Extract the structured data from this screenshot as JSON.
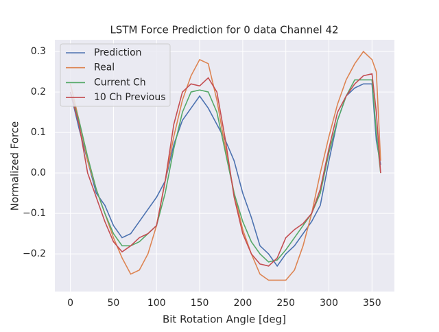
{
  "chart_data": {
    "type": "line",
    "title": "LSTM Force Prediction for 0 data Channel 42",
    "x_label": "Bit Rotation Angle [deg]",
    "y_label": "Normalized Force",
    "x": [
      0,
      10,
      20,
      30,
      40,
      50,
      60,
      70,
      80,
      90,
      100,
      110,
      120,
      130,
      140,
      150,
      160,
      170,
      180,
      190,
      200,
      210,
      220,
      230,
      240,
      250,
      260,
      270,
      280,
      290,
      300,
      310,
      320,
      330,
      340,
      350,
      355,
      360
    ],
    "series": [
      {
        "name": "Prediction",
        "color": "#4c72b0",
        "values": [
          0.2,
          0.11,
          0.03,
          -0.05,
          -0.08,
          -0.13,
          -0.16,
          -0.15,
          -0.12,
          -0.09,
          -0.06,
          -0.02,
          0.07,
          0.13,
          0.16,
          0.19,
          0.16,
          0.12,
          0.08,
          0.03,
          -0.05,
          -0.11,
          -0.18,
          -0.2,
          -0.23,
          -0.2,
          -0.18,
          -0.15,
          -0.12,
          -0.08,
          0.03,
          0.13,
          0.19,
          0.21,
          0.22,
          0.22,
          0.08,
          0.02
        ]
      },
      {
        "name": "Real",
        "color": "#dd8452",
        "values": [
          0.22,
          0.13,
          0.03,
          -0.04,
          -0.1,
          -0.16,
          -0.21,
          -0.25,
          -0.24,
          -0.2,
          -0.13,
          -0.02,
          0.09,
          0.18,
          0.24,
          0.28,
          0.27,
          0.18,
          0.06,
          -0.05,
          -0.14,
          -0.2,
          -0.25,
          -0.265,
          -0.265,
          -0.265,
          -0.24,
          -0.18,
          -0.1,
          0.0,
          0.09,
          0.17,
          0.23,
          0.27,
          0.3,
          0.28,
          0.25,
          0.03
        ]
      },
      {
        "name": "Current Ch",
        "color": "#55a868",
        "values": [
          0.2,
          0.13,
          0.04,
          -0.04,
          -0.1,
          -0.15,
          -0.18,
          -0.18,
          -0.17,
          -0.15,
          -0.13,
          -0.05,
          0.06,
          0.15,
          0.2,
          0.205,
          0.2,
          0.15,
          0.05,
          -0.05,
          -0.12,
          -0.17,
          -0.2,
          -0.22,
          -0.215,
          -0.19,
          -0.16,
          -0.13,
          -0.1,
          -0.05,
          0.05,
          0.13,
          0.19,
          0.23,
          0.23,
          0.23,
          0.1,
          0.0
        ]
      },
      {
        "name": "10 Ch Previous",
        "color": "#c44e52",
        "values": [
          0.2,
          0.12,
          0.0,
          -0.06,
          -0.12,
          -0.17,
          -0.195,
          -0.18,
          -0.16,
          -0.15,
          -0.13,
          -0.02,
          0.12,
          0.2,
          0.22,
          0.215,
          0.235,
          0.2,
          0.08,
          -0.06,
          -0.15,
          -0.2,
          -0.225,
          -0.23,
          -0.21,
          -0.16,
          -0.14,
          -0.125,
          -0.1,
          -0.04,
          0.06,
          0.15,
          0.19,
          0.22,
          0.24,
          0.245,
          0.15,
          0.0
        ]
      }
    ],
    "xlim": [
      -18,
      376
    ],
    "ylim": [
      -0.293,
      0.329
    ],
    "xticks": [
      0,
      50,
      100,
      150,
      200,
      250,
      300,
      350
    ],
    "yticks": [
      {
        "value": -0.2,
        "label": "−0.2"
      },
      {
        "value": -0.1,
        "label": "−0.1"
      },
      {
        "value": 0,
        "label": "0.0"
      },
      0.1,
      0.2,
      0.3
    ],
    "grid": true,
    "legend": "upper-left"
  }
}
